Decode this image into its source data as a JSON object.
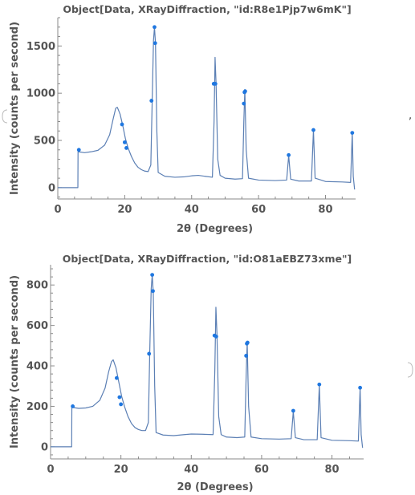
{
  "separator": ",",
  "colors": {
    "line": "#5b7fb4",
    "points": "#1f77e0"
  },
  "chart_data": [
    {
      "type": "line",
      "title": "Object[Data, XRayDiffraction, \"id:R8e1Pjp7w6mK\"]",
      "xlabel": "2θ (Degrees)",
      "ylabel": "Intensity (counts per second)",
      "xlim": [
        0,
        89
      ],
      "ylim": [
        -120,
        1800
      ],
      "xticks": [
        0,
        20,
        40,
        60,
        80
      ],
      "yticks": [
        0,
        500,
        1000,
        1500
      ],
      "curve": [
        [
          0,
          0
        ],
        [
          6.0,
          0
        ],
        [
          6.05,
          380
        ],
        [
          8,
          370
        ],
        [
          10,
          380
        ],
        [
          12,
          395
        ],
        [
          14,
          450
        ],
        [
          15.5,
          560
        ],
        [
          16.5,
          720
        ],
        [
          17.3,
          840
        ],
        [
          17.8,
          850
        ],
        [
          18.6,
          780
        ],
        [
          19.4,
          660
        ],
        [
          20.2,
          520
        ],
        [
          21,
          420
        ],
        [
          22,
          330
        ],
        [
          23,
          260
        ],
        [
          24,
          215
        ],
        [
          25,
          190
        ],
        [
          26,
          175
        ],
        [
          27,
          170
        ],
        [
          27.8,
          240
        ],
        [
          28.2,
          900
        ],
        [
          28.6,
          1560
        ],
        [
          28.9,
          1700
        ],
        [
          29.2,
          1520
        ],
        [
          29.6,
          600
        ],
        [
          30,
          160
        ],
        [
          32,
          120
        ],
        [
          35,
          110
        ],
        [
          38,
          115
        ],
        [
          40,
          125
        ],
        [
          42,
          130
        ],
        [
          44,
          120
        ],
        [
          46.2,
          110
        ],
        [
          46.7,
          700
        ],
        [
          47.0,
          1380
        ],
        [
          47.3,
          1100
        ],
        [
          47.8,
          300
        ],
        [
          48.5,
          130
        ],
        [
          50,
          100
        ],
        [
          53,
          90
        ],
        [
          55.2,
          95
        ],
        [
          55.6,
          700
        ],
        [
          55.9,
          1040
        ],
        [
          56.3,
          400
        ],
        [
          57,
          100
        ],
        [
          60,
          80
        ],
        [
          65,
          75
        ],
        [
          68.4,
          80
        ],
        [
          69.0,
          340
        ],
        [
          69.6,
          90
        ],
        [
          72,
          70
        ],
        [
          75.8,
          70
        ],
        [
          76.4,
          610
        ],
        [
          76.9,
          100
        ],
        [
          80,
          65
        ],
        [
          85,
          60
        ],
        [
          87.5,
          55
        ],
        [
          88.0,
          580
        ],
        [
          88.3,
          120
        ],
        [
          88.7,
          -20
        ]
      ],
      "points": [
        [
          6.3,
          400
        ],
        [
          19.2,
          670
        ],
        [
          20.0,
          480
        ],
        [
          20.5,
          420
        ],
        [
          28.0,
          920
        ],
        [
          28.9,
          1700
        ],
        [
          29.1,
          1530
        ],
        [
          46.6,
          1100
        ],
        [
          47.1,
          1100
        ],
        [
          55.6,
          890
        ],
        [
          55.8,
          1010
        ],
        [
          56.0,
          1020
        ],
        [
          69.0,
          345
        ],
        [
          76.4,
          610
        ],
        [
          88.0,
          580
        ]
      ]
    },
    {
      "type": "line",
      "title": "Object[Data, XRayDiffraction, \"id:O81aEBZ73xme\"]",
      "xlabel": "2θ (Degrees)",
      "ylabel": "Intensity (counts per second)",
      "xlim": [
        0,
        89
      ],
      "ylim": [
        -60,
        900
      ],
      "xticks": [
        0,
        20,
        40,
        60,
        80
      ],
      "yticks": [
        0,
        200,
        400,
        600,
        800
      ],
      "curve": [
        [
          0,
          0
        ],
        [
          6.0,
          0
        ],
        [
          6.05,
          195
        ],
        [
          8,
          190
        ],
        [
          10,
          192
        ],
        [
          12,
          200
        ],
        [
          14,
          230
        ],
        [
          15.5,
          290
        ],
        [
          16.5,
          370
        ],
        [
          17.3,
          420
        ],
        [
          17.8,
          430
        ],
        [
          18.6,
          390
        ],
        [
          19.4,
          320
        ],
        [
          20.2,
          250
        ],
        [
          21,
          200
        ],
        [
          22,
          150
        ],
        [
          23,
          115
        ],
        [
          24,
          95
        ],
        [
          25,
          85
        ],
        [
          26,
          80
        ],
        [
          27,
          80
        ],
        [
          27.8,
          120
        ],
        [
          28.2,
          470
        ],
        [
          28.6,
          780
        ],
        [
          28.9,
          850
        ],
        [
          29.2,
          760
        ],
        [
          29.6,
          300
        ],
        [
          30,
          70
        ],
        [
          32,
          58
        ],
        [
          35,
          55
        ],
        [
          38,
          60
        ],
        [
          40,
          63
        ],
        [
          43,
          62
        ],
        [
          46.2,
          60
        ],
        [
          46.7,
          380
        ],
        [
          47.0,
          690
        ],
        [
          47.3,
          560
        ],
        [
          47.8,
          150
        ],
        [
          48.5,
          60
        ],
        [
          50,
          48
        ],
        [
          53,
          45
        ],
        [
          55.2,
          48
        ],
        [
          55.6,
          350
        ],
        [
          55.9,
          520
        ],
        [
          56.3,
          200
        ],
        [
          57,
          48
        ],
        [
          60,
          40
        ],
        [
          65,
          38
        ],
        [
          68.4,
          40
        ],
        [
          69.0,
          175
        ],
        [
          69.6,
          45
        ],
        [
          72,
          35
        ],
        [
          75.8,
          35
        ],
        [
          76.4,
          305
        ],
        [
          76.9,
          45
        ],
        [
          80,
          32
        ],
        [
          85,
          30
        ],
        [
          87.5,
          28
        ],
        [
          88.0,
          290
        ],
        [
          88.3,
          60
        ],
        [
          88.7,
          -5
        ]
      ],
      "points": [
        [
          6.3,
          200
        ],
        [
          18.8,
          340
        ],
        [
          19.6,
          245
        ],
        [
          20.0,
          210
        ],
        [
          28.0,
          460
        ],
        [
          28.9,
          850
        ],
        [
          29.1,
          770
        ],
        [
          46.6,
          550
        ],
        [
          47.1,
          545
        ],
        [
          55.6,
          450
        ],
        [
          55.8,
          510
        ],
        [
          56.0,
          515
        ],
        [
          69.0,
          178
        ],
        [
          76.4,
          308
        ],
        [
          88.0,
          292
        ]
      ]
    }
  ]
}
